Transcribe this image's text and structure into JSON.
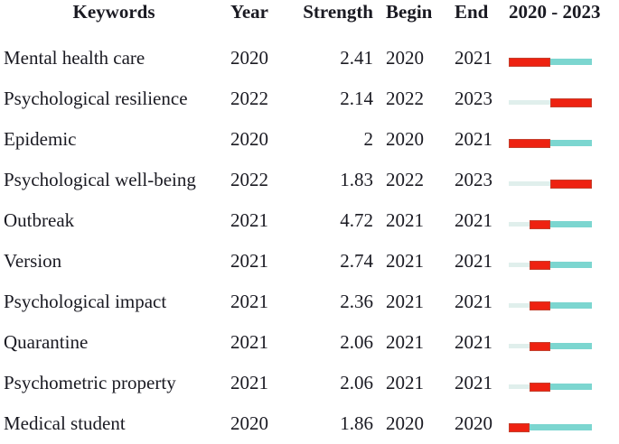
{
  "chart_data": {
    "type": "table",
    "columns": [
      "Keywords",
      "Year",
      "Strength",
      "Begin",
      "End",
      "2020 - 2023"
    ],
    "period": [
      2020,
      2023
    ],
    "rows": [
      {
        "keyword": "Mental health care",
        "year": "2020",
        "strength": "2.41",
        "begin": "2020",
        "end": "2021",
        "burst_begin": 2020,
        "burst_end": 2021
      },
      {
        "keyword": "Psychological resilience",
        "year": "2022",
        "strength": "2.14",
        "begin": "2022",
        "end": "2023",
        "burst_begin": 2022,
        "burst_end": 2023
      },
      {
        "keyword": "Epidemic",
        "year": "2020",
        "strength": "2",
        "begin": "2020",
        "end": "2021",
        "burst_begin": 2020,
        "burst_end": 2021
      },
      {
        "keyword": "Psychological well-being",
        "year": "2022",
        "strength": "1.83",
        "begin": "2022",
        "end": "2023",
        "burst_begin": 2022,
        "burst_end": 2023
      },
      {
        "keyword": "Outbreak",
        "year": "2021",
        "strength": "4.72",
        "begin": "2021",
        "end": "2021",
        "burst_begin": 2021,
        "burst_end": 2021
      },
      {
        "keyword": "Version",
        "year": "2021",
        "strength": "2.74",
        "begin": "2021",
        "end": "2021",
        "burst_begin": 2021,
        "burst_end": 2021
      },
      {
        "keyword": "Psychological impact",
        "year": "2021",
        "strength": "2.36",
        "begin": "2021",
        "end": "2021",
        "burst_begin": 2021,
        "burst_end": 2021
      },
      {
        "keyword": "Quarantine",
        "year": "2021",
        "strength": "2.06",
        "begin": "2021",
        "end": "2021",
        "burst_begin": 2021,
        "burst_end": 2021
      },
      {
        "keyword": "Psychometric property",
        "year": "2021",
        "strength": "2.06",
        "begin": "2021",
        "end": "2021",
        "burst_begin": 2021,
        "burst_end": 2021
      },
      {
        "keyword": "Medical student",
        "year": "2020",
        "strength": "1.86",
        "begin": "2020",
        "end": "2020",
        "burst_begin": 2020,
        "burst_end": 2020
      }
    ]
  },
  "colors": {
    "burst_red": "#ee2211",
    "post_burst_teal": "#7cd6d0",
    "pre_burst_pale": "#e0efec",
    "text": "#1a1a22"
  }
}
